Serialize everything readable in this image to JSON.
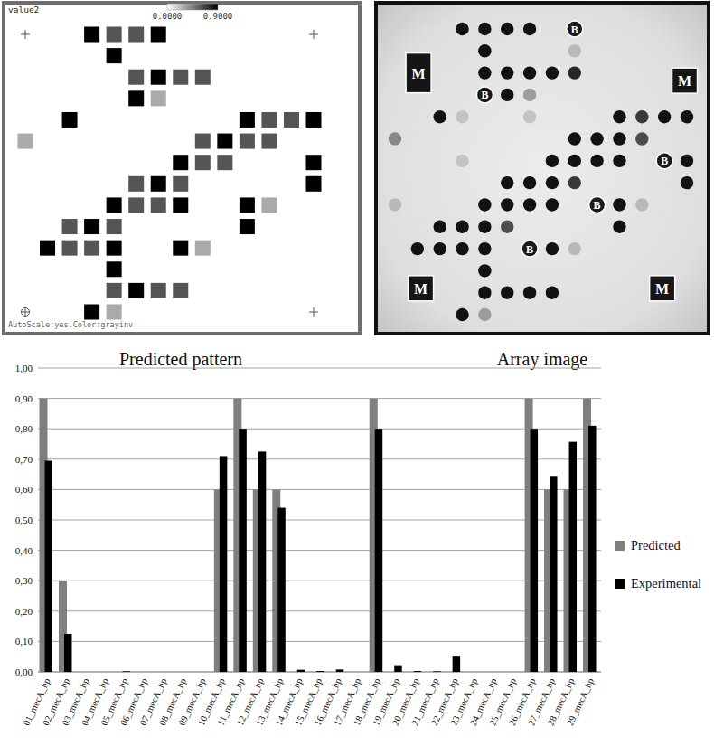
{
  "chart_data": [
    {
      "type": "heatmap",
      "label": "value2",
      "caption": "Predicted pattern",
      "footer": "AutoScale:yes.Color:grayinv",
      "rows": 14,
      "cols": 14,
      "colorbar": {
        "range": [
          0,
          0.9
        ],
        "ticks": [
          {
            "value": 0,
            "label": "0.0000"
          },
          {
            "value": 0.9,
            "label": "0.9000"
          }
        ]
      },
      "cells": [
        {
          "row": 0,
          "col": 3,
          "value": 0.9
        },
        {
          "row": 0,
          "col": 4,
          "value": 0.6
        },
        {
          "row": 0,
          "col": 5,
          "value": 0.6
        },
        {
          "row": 0,
          "col": 6,
          "value": 0.9
        },
        {
          "row": 1,
          "col": 4,
          "value": 0.9
        },
        {
          "row": 2,
          "col": 5,
          "value": 0.6
        },
        {
          "row": 2,
          "col": 6,
          "value": 0.9
        },
        {
          "row": 2,
          "col": 7,
          "value": 0.6
        },
        {
          "row": 2,
          "col": 8,
          "value": 0.6
        },
        {
          "row": 3,
          "col": 5,
          "value": 0.9
        },
        {
          "row": 3,
          "col": 6,
          "value": 0.3
        },
        {
          "row": 4,
          "col": 2,
          "value": 0.9
        },
        {
          "row": 4,
          "col": 10,
          "value": 0.9
        },
        {
          "row": 4,
          "col": 11,
          "value": 0.6
        },
        {
          "row": 4,
          "col": 12,
          "value": 0.6
        },
        {
          "row": 4,
          "col": 13,
          "value": 0.9
        },
        {
          "row": 5,
          "col": 0,
          "value": 0.3
        },
        {
          "row": 5,
          "col": 8,
          "value": 0.6
        },
        {
          "row": 5,
          "col": 9,
          "value": 0.9
        },
        {
          "row": 5,
          "col": 10,
          "value": 0.6
        },
        {
          "row": 5,
          "col": 11,
          "value": 0.6
        },
        {
          "row": 6,
          "col": 7,
          "value": 0.9
        },
        {
          "row": 6,
          "col": 8,
          "value": 0.6
        },
        {
          "row": 6,
          "col": 9,
          "value": 0.6
        },
        {
          "row": 6,
          "col": 13,
          "value": 0.9
        },
        {
          "row": 7,
          "col": 5,
          "value": 0.6
        },
        {
          "row": 7,
          "col": 6,
          "value": 0.9
        },
        {
          "row": 7,
          "col": 7,
          "value": 0.6
        },
        {
          "row": 7,
          "col": 13,
          "value": 0.9
        },
        {
          "row": 8,
          "col": 4,
          "value": 0.9
        },
        {
          "row": 8,
          "col": 5,
          "value": 0.6
        },
        {
          "row": 8,
          "col": 6,
          "value": 0.6
        },
        {
          "row": 8,
          "col": 7,
          "value": 0.9
        },
        {
          "row": 8,
          "col": 10,
          "value": 0.9
        },
        {
          "row": 8,
          "col": 11,
          "value": 0.3
        },
        {
          "row": 9,
          "col": 2,
          "value": 0.6
        },
        {
          "row": 9,
          "col": 3,
          "value": 0.9
        },
        {
          "row": 9,
          "col": 4,
          "value": 0.6
        },
        {
          "row": 9,
          "col": 10,
          "value": 0.9
        },
        {
          "row": 10,
          "col": 1,
          "value": 0.9
        },
        {
          "row": 10,
          "col": 2,
          "value": 0.6
        },
        {
          "row": 10,
          "col": 3,
          "value": 0.6
        },
        {
          "row": 10,
          "col": 4,
          "value": 0.9
        },
        {
          "row": 10,
          "col": 7,
          "value": 0.9
        },
        {
          "row": 10,
          "col": 8,
          "value": 0.3
        },
        {
          "row": 11,
          "col": 4,
          "value": 0.9
        },
        {
          "row": 12,
          "col": 4,
          "value": 0.6
        },
        {
          "row": 12,
          "col": 5,
          "value": 0.9
        },
        {
          "row": 12,
          "col": 6,
          "value": 0.6
        },
        {
          "row": 12,
          "col": 7,
          "value": 0.6
        },
        {
          "row": 13,
          "col": 3,
          "value": 0.9
        },
        {
          "row": 13,
          "col": 4,
          "value": 0.3
        }
      ]
    },
    {
      "type": "dot_array",
      "caption": "Array image",
      "rows": 14,
      "cols": 14,
      "spots": [
        {
          "row": 0,
          "col": 3,
          "intensity": 1
        },
        {
          "row": 0,
          "col": 4,
          "intensity": 1
        },
        {
          "row": 0,
          "col": 5,
          "intensity": 1
        },
        {
          "row": 0,
          "col": 6,
          "intensity": 1
        },
        {
          "row": 1,
          "col": 4,
          "intensity": 1
        },
        {
          "row": 1,
          "col": 8,
          "intensity": 0.15
        },
        {
          "row": 2,
          "col": 4,
          "intensity": 1
        },
        {
          "row": 2,
          "col": 5,
          "intensity": 1
        },
        {
          "row": 2,
          "col": 6,
          "intensity": 1
        },
        {
          "row": 2,
          "col": 7,
          "intensity": 1
        },
        {
          "row": 2,
          "col": 8,
          "intensity": 0.9
        },
        {
          "row": 3,
          "col": 5,
          "intensity": 1
        },
        {
          "row": 3,
          "col": 6,
          "intensity": 0.3
        },
        {
          "row": 4,
          "col": 2,
          "intensity": 1
        },
        {
          "row": 4,
          "col": 3,
          "intensity": 0.1
        },
        {
          "row": 4,
          "col": 6,
          "intensity": 0.1
        },
        {
          "row": 4,
          "col": 10,
          "intensity": 1
        },
        {
          "row": 4,
          "col": 11,
          "intensity": 0.8
        },
        {
          "row": 4,
          "col": 12,
          "intensity": 1
        },
        {
          "row": 4,
          "col": 13,
          "intensity": 1
        },
        {
          "row": 5,
          "col": 0,
          "intensity": 0.4
        },
        {
          "row": 5,
          "col": 8,
          "intensity": 1
        },
        {
          "row": 5,
          "col": 9,
          "intensity": 1
        },
        {
          "row": 5,
          "col": 10,
          "intensity": 1
        },
        {
          "row": 5,
          "col": 11,
          "intensity": 0.7
        },
        {
          "row": 6,
          "col": 3,
          "intensity": 0.1
        },
        {
          "row": 6,
          "col": 7,
          "intensity": 1
        },
        {
          "row": 6,
          "col": 8,
          "intensity": 1
        },
        {
          "row": 6,
          "col": 9,
          "intensity": 1
        },
        {
          "row": 6,
          "col": 10,
          "intensity": 1
        },
        {
          "row": 6,
          "col": 13,
          "intensity": 1
        },
        {
          "row": 7,
          "col": 5,
          "intensity": 1
        },
        {
          "row": 7,
          "col": 6,
          "intensity": 1
        },
        {
          "row": 7,
          "col": 7,
          "intensity": 1
        },
        {
          "row": 7,
          "col": 8,
          "intensity": 0.8
        },
        {
          "row": 7,
          "col": 13,
          "intensity": 1
        },
        {
          "row": 8,
          "col": 0,
          "intensity": 0.15
        },
        {
          "row": 8,
          "col": 4,
          "intensity": 1
        },
        {
          "row": 8,
          "col": 5,
          "intensity": 1
        },
        {
          "row": 8,
          "col": 6,
          "intensity": 1
        },
        {
          "row": 8,
          "col": 7,
          "intensity": 1
        },
        {
          "row": 8,
          "col": 10,
          "intensity": 1
        },
        {
          "row": 8,
          "col": 11,
          "intensity": 0.15
        },
        {
          "row": 9,
          "col": 2,
          "intensity": 1
        },
        {
          "row": 9,
          "col": 3,
          "intensity": 1
        },
        {
          "row": 9,
          "col": 4,
          "intensity": 1
        },
        {
          "row": 9,
          "col": 5,
          "intensity": 0.7
        },
        {
          "row": 9,
          "col": 10,
          "intensity": 1
        },
        {
          "row": 10,
          "col": 1,
          "intensity": 1
        },
        {
          "row": 10,
          "col": 2,
          "intensity": 1
        },
        {
          "row": 10,
          "col": 3,
          "intensity": 1
        },
        {
          "row": 10,
          "col": 4,
          "intensity": 1
        },
        {
          "row": 10,
          "col": 7,
          "intensity": 1
        },
        {
          "row": 10,
          "col": 8,
          "intensity": 0.15
        },
        {
          "row": 11,
          "col": 4,
          "intensity": 1
        },
        {
          "row": 12,
          "col": 4,
          "intensity": 1
        },
        {
          "row": 12,
          "col": 5,
          "intensity": 1
        },
        {
          "row": 12,
          "col": 6,
          "intensity": 1
        },
        {
          "row": 12,
          "col": 7,
          "intensity": 1
        },
        {
          "row": 13,
          "col": 3,
          "intensity": 1
        },
        {
          "row": 13,
          "col": 4,
          "intensity": 0.3
        }
      ],
      "control_spots": [
        {
          "label": "M",
          "row": 2,
          "col": 1.05
        },
        {
          "label": "M",
          "row": 2.35,
          "col": 12.9
        },
        {
          "label": "M",
          "row": 11.8,
          "col": 1.15
        },
        {
          "label": "M",
          "row": 11.8,
          "col": 11.9
        }
      ],
      "blank_spots": [
        {
          "label": "B",
          "row": 0,
          "col": 8
        },
        {
          "label": "B",
          "row": 3,
          "col": 4
        },
        {
          "label": "B",
          "row": 6,
          "col": 12
        },
        {
          "label": "B",
          "row": 8,
          "col": 9
        },
        {
          "label": "B",
          "row": 10,
          "col": 6
        }
      ]
    },
    {
      "type": "bar",
      "categories": [
        "01_mecA_hp",
        "02_mecA_hp",
        "03_mecA_hp",
        "04_mecA_hp",
        "05_mecA_hp",
        "06_mecA_hp",
        "07_mecA_hp",
        "08_mecA_hp",
        "09_mecA_hp",
        "10_mecA_hp",
        "11_mecA_hp",
        "12_mecA_hp",
        "13_mecA_hp",
        "14_mecA_hp",
        "15_mecA_hp",
        "16_mecA_hp",
        "17_mecA_hp",
        "18_mecA_hp",
        "19_mecA_hp",
        "20_mecA_hp",
        "21_mecA_hp",
        "22_mecA_hp",
        "23_mecA_hp",
        "24_mecA_hp",
        "25_mecA_hp",
        "26_mecA_hp",
        "27_mecA_hp",
        "28_mecA_hp",
        "29_mecA_hp"
      ],
      "series": [
        {
          "name": "Predicted",
          "color": "#7f7f7f",
          "values": [
            0.9,
            0.3,
            0,
            0,
            0,
            0,
            0,
            0,
            0,
            0.6,
            0.9,
            0.6,
            0.6,
            0,
            0,
            0,
            0,
            0.9,
            0,
            0,
            0,
            0,
            0,
            0,
            0,
            0.9,
            0.6,
            0.6,
            0.9
          ]
        },
        {
          "name": "Experimental",
          "color": "#000000",
          "values": [
            0.695,
            0.125,
            0,
            0,
            0.002,
            0,
            0,
            0,
            0,
            0.71,
            0.8,
            0.725,
            0.54,
            0.007,
            0.003,
            0.008,
            0,
            0.8,
            0.022,
            0.003,
            0.002,
            0.053,
            0,
            0,
            0,
            0.8,
            0.645,
            0.757,
            0.81
          ]
        }
      ],
      "ylim": [
        0,
        1
      ],
      "yticks": [
        {
          "value": 0,
          "label": "0,00"
        },
        {
          "value": 0.1,
          "label": "0,10"
        },
        {
          "value": 0.2,
          "label": "0,20"
        },
        {
          "value": 0.3,
          "label": "0,30"
        },
        {
          "value": 0.4,
          "label": "0,40"
        },
        {
          "value": 0.5,
          "label": "0,50"
        },
        {
          "value": 0.6,
          "label": "0,60"
        },
        {
          "value": 0.7,
          "label": "0,70"
        },
        {
          "value": 0.8,
          "label": "0,80"
        },
        {
          "value": 0.9,
          "label": "0,90"
        },
        {
          "value": 1,
          "label": "1,00"
        }
      ],
      "grid": true,
      "legend": "right"
    }
  ]
}
